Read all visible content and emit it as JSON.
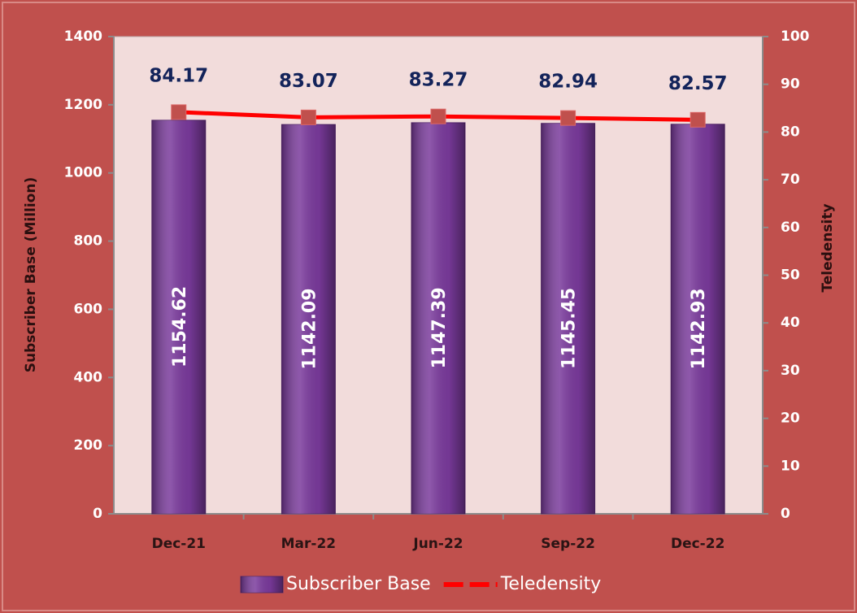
{
  "chart_data": {
    "type": "bar",
    "categories": [
      "Dec-21",
      "Mar-22",
      "Jun-22",
      "Sep-22",
      "Dec-22"
    ],
    "series": [
      {
        "name": "Subscriber Base",
        "color": "#7a3a9c",
        "values": [
          1154.62,
          1142.09,
          1147.39,
          1145.45,
          1142.93
        ]
      },
      {
        "name": "Teledensity",
        "color": "#ff0000",
        "axis": "y2",
        "type": "line",
        "values": [
          84.17,
          83.07,
          83.27,
          82.94,
          82.57
        ]
      }
    ],
    "ylabel": "Subscriber Base (Million)",
    "y2label": "Teledensity",
    "ylim": [
      0,
      1400
    ],
    "yticks": [
      0,
      200,
      400,
      600,
      800,
      1000,
      1200,
      1400
    ],
    "y2lim": [
      0,
      100
    ],
    "y2ticks": [
      0,
      10,
      20,
      30,
      40,
      50,
      60,
      70,
      80,
      90,
      100
    ],
    "legend": "bottom"
  }
}
